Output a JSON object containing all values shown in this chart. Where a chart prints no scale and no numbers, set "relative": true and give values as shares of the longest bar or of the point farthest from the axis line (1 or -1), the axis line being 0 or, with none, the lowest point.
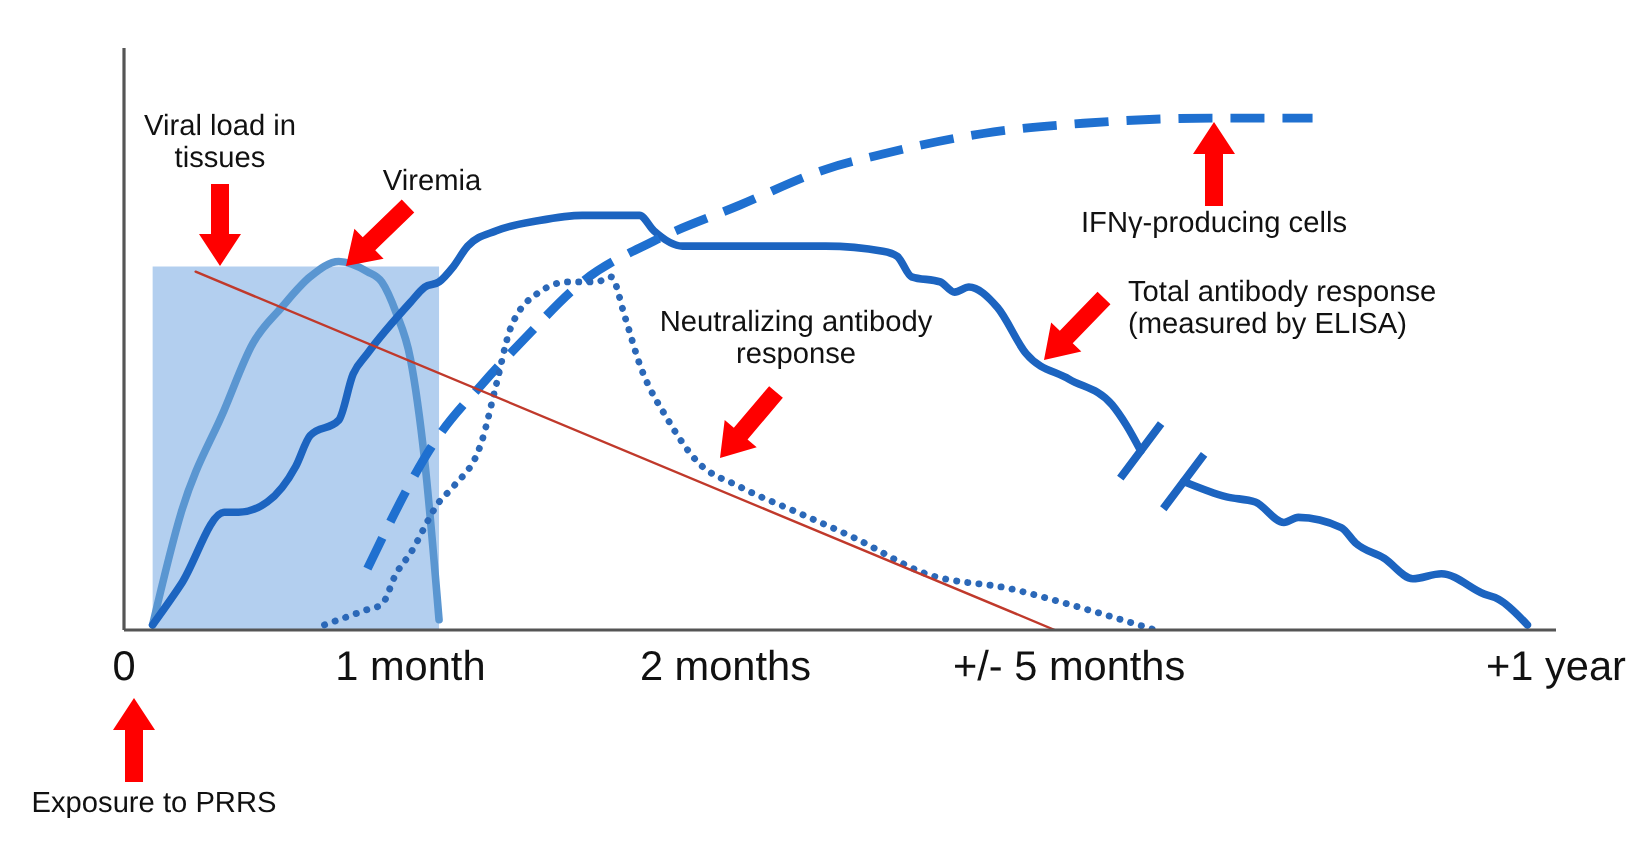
{
  "chart_data": {
    "type": "line",
    "relative": true,
    "tick_labels": "x",
    "categories": [
      "0",
      null,
      null,
      null,
      null,
      null,
      null,
      null,
      null,
      null,
      null,
      null,
      null,
      null,
      null,
      null,
      null,
      null,
      null,
      null,
      "1 month",
      null,
      null,
      null,
      null,
      null,
      null,
      null,
      null,
      null,
      null,
      null,
      null,
      null,
      null,
      null,
      null,
      null,
      null,
      null,
      null,
      null,
      "2 months",
      null,
      null,
      null,
      null,
      null,
      null,
      null,
      null,
      null,
      null,
      null,
      null,
      null,
      null,
      null,
      null,
      null,
      null,
      null,
      null,
      null,
      null,
      null,
      "+/- 5 months",
      null,
      null,
      null,
      null,
      null,
      null,
      null,
      null,
      null,
      null,
      null,
      null,
      null,
      null,
      null,
      null,
      null,
      null,
      null,
      null,
      null,
      null,
      null,
      null,
      null,
      null,
      null,
      null,
      null,
      null,
      null,
      null,
      null,
      "+1 year"
    ],
    "series": [
      {
        "type": "area",
        "color": "#b3cfef",
        "values": [
          null,
          null,
          0.71,
          null,
          null,
          null,
          null,
          null,
          null,
          null,
          null,
          null,
          null,
          null,
          null,
          null,
          null,
          null,
          null,
          null,
          null,
          null,
          0.71,
          null,
          null,
          null,
          null,
          null,
          null,
          null,
          null,
          null,
          null,
          null,
          null,
          null,
          null,
          null,
          null,
          null,
          null,
          null,
          null,
          null,
          null,
          null,
          null,
          null,
          null,
          null,
          null,
          null,
          null,
          null,
          null,
          null,
          null,
          null,
          null,
          null,
          null,
          null,
          null,
          null,
          null,
          null,
          null,
          null,
          null,
          null,
          null,
          null,
          null,
          null,
          null,
          null,
          null,
          null,
          null,
          null,
          null,
          null,
          null,
          null,
          null,
          null,
          null,
          null,
          null,
          null,
          null,
          null,
          null,
          null,
          null,
          null,
          null,
          null,
          null,
          null,
          null
        ]
      },
      {
        "color": "#5a96d1",
        "line_style": "solid",
        "values": [
          null,
          null,
          0.01,
          null,
          0.23,
          null,
          null,
          0.43,
          null,
          0.56,
          null,
          0.63,
          null,
          0.69,
          null,
          0.72,
          null,
          0.7,
          0.68,
          0.62,
          0.53,
          0.33,
          0.02,
          null,
          null,
          null,
          null,
          null,
          null,
          null,
          null,
          null,
          null,
          null,
          null,
          null,
          null,
          null,
          null,
          null,
          null,
          null,
          null,
          null,
          null,
          null,
          null,
          null,
          null,
          null,
          null,
          null,
          null,
          null,
          null,
          null,
          null,
          null,
          null,
          null,
          null,
          null,
          null,
          null,
          null,
          null,
          null,
          null,
          null,
          null,
          null,
          null,
          null,
          null,
          null,
          null,
          null,
          null,
          null,
          null,
          null,
          null,
          null,
          null,
          null,
          null,
          null,
          null,
          null,
          null,
          null,
          null,
          null,
          null,
          null,
          null,
          null,
          null,
          null,
          null,
          null
        ]
      },
      {
        "color": "#1c64c0",
        "line_style": "solid",
        "values": [
          null,
          null,
          0.01,
          null,
          0.09,
          null,
          null,
          0.23,
          0.23,
          null,
          0.25,
          null,
          0.32,
          0.38,
          null,
          0.41,
          0.5,
          0.54,
          null,
          null,
          0.64,
          0.67,
          0.68,
          0.71,
          0.75,
          null,
          0.78,
          null,
          null,
          0.8,
          null,
          null,
          0.81,
          null,
          null,
          null,
          0.81,
          0.78,
          null,
          0.75,
          null,
          null,
          null,
          0.75,
          null,
          null,
          null,
          null,
          null,
          0.75,
          null,
          null,
          null,
          0.74,
          0.73,
          0.69,
          null,
          0.68,
          0.66,
          0.67,
          null,
          0.63,
          null,
          0.54,
          null,
          null,
          0.49,
          null,
          null,
          0.44,
          0.4,
          0.35,
          null,
          null,
          null,
          null,
          null,
          null,
          null,
          null,
          null,
          null,
          null,
          null,
          null,
          null,
          null,
          null,
          null,
          null,
          null,
          null,
          null,
          null,
          null,
          null,
          null,
          null,
          null,
          null,
          null
        ]
      },
      {
        "color": "#1c64c0",
        "line_style": "solid",
        "values": [
          null,
          null,
          null,
          null,
          null,
          null,
          null,
          null,
          null,
          null,
          null,
          null,
          null,
          null,
          null,
          null,
          null,
          null,
          null,
          null,
          null,
          null,
          null,
          null,
          null,
          null,
          null,
          null,
          null,
          null,
          null,
          null,
          null,
          null,
          null,
          null,
          null,
          null,
          null,
          null,
          null,
          null,
          null,
          null,
          null,
          null,
          null,
          null,
          null,
          null,
          null,
          null,
          null,
          null,
          null,
          null,
          null,
          null,
          null,
          null,
          null,
          null,
          null,
          null,
          null,
          null,
          null,
          null,
          null,
          null,
          null,
          null,
          null,
          null,
          0.29,
          null,
          null,
          0.26,
          null,
          0.25,
          null,
          0.21,
          0.22,
          null,
          null,
          0.2,
          0.17,
          null,
          0.14,
          null,
          0.1,
          null,
          0.11,
          null,
          null,
          0.07,
          0.06,
          null,
          0.01,
          null,
          null
        ]
      },
      {
        "color": "#1f70d0",
        "line_style": "dashed",
        "values": [
          null,
          null,
          null,
          null,
          null,
          null,
          null,
          null,
          null,
          null,
          null,
          null,
          null,
          null,
          null,
          null,
          null,
          0.12,
          null,
          null,
          null,
          null,
          0.38,
          null,
          null,
          0.48,
          null,
          null,
          0.57,
          null,
          null,
          null,
          0.68,
          null,
          null,
          null,
          null,
          0.76,
          null,
          null,
          null,
          null,
          null,
          0.83,
          null,
          null,
          null,
          null,
          null,
          0.9,
          null,
          null,
          null,
          0.93,
          null,
          null,
          null,
          null,
          null,
          null,
          0.97,
          null,
          null,
          null,
          null,
          null,
          null,
          0.99,
          null,
          null,
          null,
          null,
          null,
          null,
          null,
          null,
          1,
          null,
          null,
          null,
          null,
          null,
          null,
          1,
          null,
          null,
          null,
          null,
          null,
          null,
          null,
          null,
          null,
          null,
          null,
          null,
          null,
          null,
          null,
          null,
          null
        ]
      },
      {
        "color": "#2b68b8",
        "line_style": "dotted",
        "values": [
          null,
          null,
          null,
          null,
          null,
          null,
          null,
          null,
          null,
          null,
          null,
          null,
          null,
          null,
          0.01,
          null,
          0.03,
          0.04,
          0.05,
          0.11,
          0.15,
          null,
          0.25,
          0.28,
          null,
          0.37,
          0.48,
          0.59,
          null,
          0.66,
          null,
          0.68,
          null,
          0.68,
          0.69,
          0.61,
          0.52,
          null,
          0.41,
          null,
          0.33,
          null,
          null,
          0.28,
          null,
          null,
          null,
          0.23,
          null,
          null,
          null,
          0.18,
          null,
          null,
          null,
          null,
          0.11,
          null,
          null,
          null,
          null,
          null,
          0.08,
          null,
          null,
          null,
          0.05,
          null,
          null,
          null,
          null,
          null,
          0.0,
          null,
          null,
          null,
          null,
          null,
          null,
          null,
          null,
          null,
          null,
          null,
          null,
          null,
          null,
          null,
          null,
          null,
          null,
          null,
          null,
          null,
          null,
          null,
          null,
          null,
          null,
          null,
          null
        ]
      },
      {
        "color": "#c0392b",
        "line_style": "solid",
        "values": [
          null,
          null,
          null,
          null,
          null,
          0.7,
          null,
          null,
          null,
          null,
          null,
          null,
          null,
          null,
          null,
          null,
          null,
          null,
          null,
          null,
          null,
          null,
          null,
          null,
          null,
          null,
          null,
          null,
          null,
          null,
          null,
          null,
          null,
          null,
          null,
          null,
          null,
          null,
          null,
          null,
          null,
          null,
          null,
          null,
          null,
          null,
          null,
          null,
          null,
          null,
          null,
          null,
          null,
          null,
          null,
          null,
          null,
          null,
          null,
          null,
          null,
          null,
          null,
          null,
          null,
          0.0,
          null,
          null,
          null,
          null,
          null,
          null,
          null,
          null,
          null,
          null,
          null,
          null,
          null,
          null,
          null,
          null,
          null,
          null,
          null,
          null,
          null,
          null,
          null,
          null,
          null,
          null,
          null,
          null,
          null,
          null,
          null,
          null,
          null,
          null,
          null
        ]
      }
    ],
    "annotations": [
      "Viral load in tissues",
      "Viremia",
      "IFNγ-producing cells",
      "Total antibody response (measured by ELISA)",
      "Neutralizing antibody response",
      "Exposure to PRRS"
    ]
  }
}
